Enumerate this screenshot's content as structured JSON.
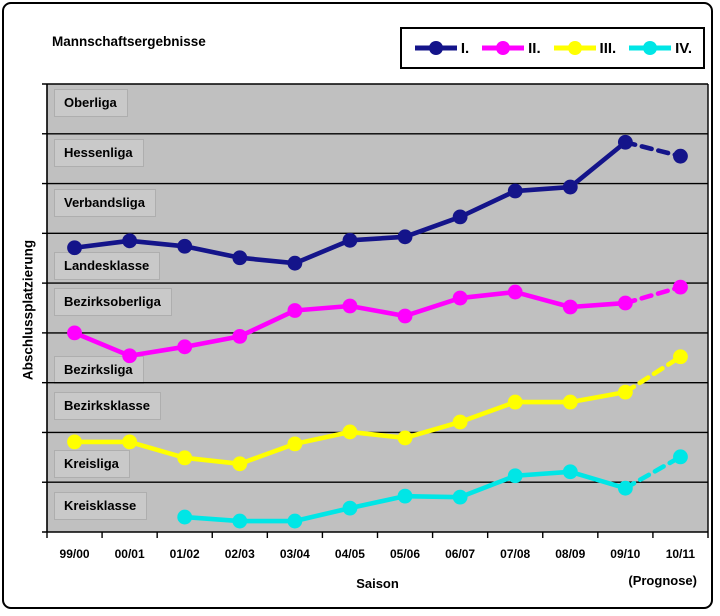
{
  "title": "Mannschaftsergebnisse",
  "legend": {
    "items": [
      {
        "label": "I.",
        "color": "#14148a"
      },
      {
        "label": "II.",
        "color": "#ff00ff"
      },
      {
        "label": "III.",
        "color": "#ffff00"
      },
      {
        "label": "IV.",
        "color": "#00e6e6"
      }
    ]
  },
  "axes": {
    "x_title": "Saison",
    "x_note": "(Prognose)",
    "y_title": "Abschlussplatzierung"
  },
  "colors": {
    "plot_background": "#c0c0c0",
    "gridline": "#000000",
    "band_label_background": "#c9c9c9"
  },
  "chart_data": {
    "type": "line",
    "title": "Mannschaftsergebnisse",
    "xlabel": "Saison",
    "xlabel_note": "(Prognose)",
    "ylabel": "Abschlussplatzierung",
    "grid": "horizontal bands, one per league",
    "legend_position": "top-right",
    "categories": [
      "99/00",
      "00/01",
      "01/02",
      "02/03",
      "03/04",
      "04/05",
      "05/06",
      "06/07",
      "07/08",
      "08/09",
      "09/10",
      "10/11"
    ],
    "y_bands": [
      "Oberliga",
      "Hessenliga",
      "Verbandsliga",
      "Landesklasse",
      "Bezirksoberliga",
      "Bezirksliga",
      "Bezirksklasse",
      "Kreisliga",
      "Kreisklasse"
    ],
    "y_unit_note": "values in band units: 0 = top edge (Oberliga), 9 = bottom edge (Kreisklasse); integer k = boundary line k",
    "last_segment_dashed": true,
    "last_category_is_forecast": true,
    "series": [
      {
        "name": "I.",
        "color": "#14148a",
        "values": [
          3.29,
          3.15,
          3.26,
          3.49,
          3.6,
          3.14,
          3.07,
          2.67,
          2.15,
          2.07,
          1.17,
          1.45
        ]
      },
      {
        "name": "II.",
        "color": "#ff00ff",
        "values": [
          5.0,
          5.46,
          5.28,
          5.07,
          4.55,
          4.46,
          4.66,
          4.3,
          4.18,
          4.48,
          4.4,
          4.08
        ]
      },
      {
        "name": "III.",
        "color": "#ffff00",
        "values": [
          7.19,
          7.19,
          7.51,
          7.63,
          7.23,
          6.99,
          7.11,
          6.79,
          6.39,
          6.39,
          6.19,
          5.48
        ]
      },
      {
        "name": "IV.",
        "color": "#00e6e6",
        "values": [
          null,
          null,
          8.7,
          8.78,
          8.78,
          8.52,
          8.28,
          8.3,
          7.87,
          7.79,
          8.12,
          7.49
        ]
      }
    ]
  }
}
